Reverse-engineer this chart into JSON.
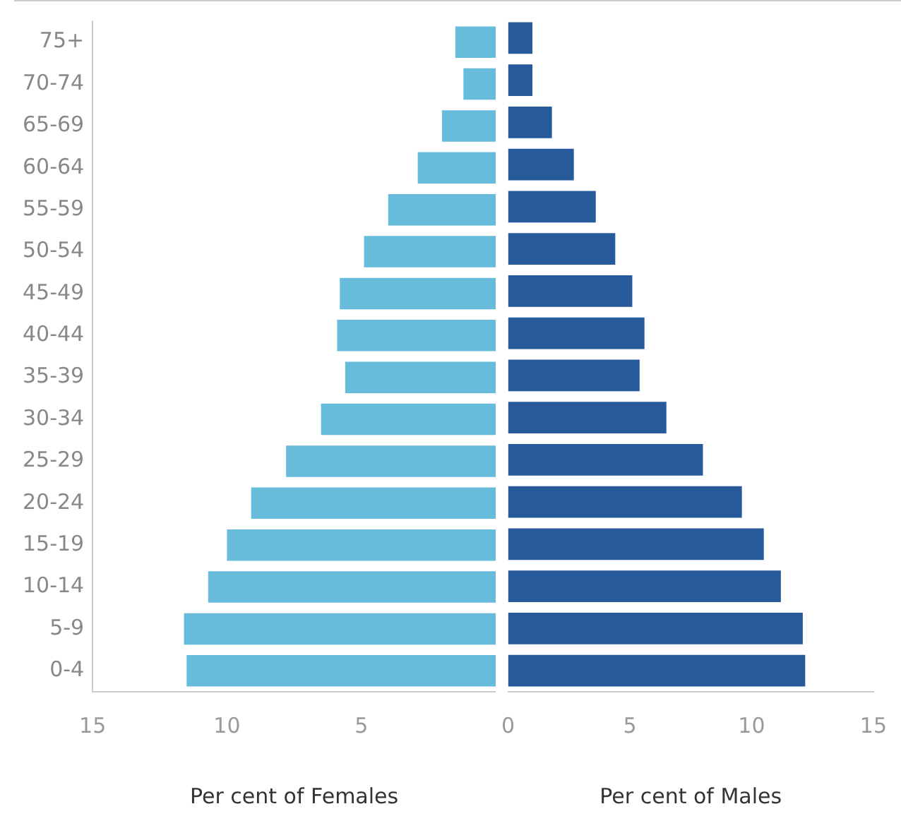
{
  "chart_data": [
    {
      "type": "bar",
      "orientation": "horizontal",
      "xlabel": "Per cent of Females",
      "categories": [
        "75+",
        "70-74",
        "65-69",
        "60-64",
        "55-59",
        "50-54",
        "45-49",
        "40-44",
        "35-39",
        "30-34",
        "25-29",
        "20-24",
        "15-19",
        "10-14",
        "5-9",
        "0-4"
      ],
      "values": [
        1.5,
        1.2,
        2.0,
        2.9,
        4.0,
        4.9,
        5.8,
        5.9,
        5.6,
        6.5,
        7.8,
        9.1,
        10.0,
        10.7,
        11.6,
        11.5
      ],
      "color": "#67bbdb",
      "xlim": [
        15,
        0
      ],
      "xticks": [
        15,
        10,
        5
      ],
      "grid": false,
      "legend": false
    },
    {
      "type": "bar",
      "orientation": "horizontal",
      "xlabel": "Per cent of Males",
      "categories": [
        null,
        null,
        null,
        null,
        null,
        null,
        null,
        null,
        null,
        null,
        null,
        null,
        null,
        null,
        null,
        null
      ],
      "values": [
        1.0,
        1.0,
        1.8,
        2.7,
        3.6,
        4.4,
        5.1,
        5.6,
        5.4,
        6.5,
        8.0,
        9.6,
        10.5,
        11.2,
        12.1,
        12.2
      ],
      "color": "#275a9a",
      "xlim": [
        0,
        15
      ],
      "xticks": [
        0,
        5,
        10,
        15
      ],
      "tick_labels": "x",
      "grid": false,
      "legend": false
    }
  ]
}
